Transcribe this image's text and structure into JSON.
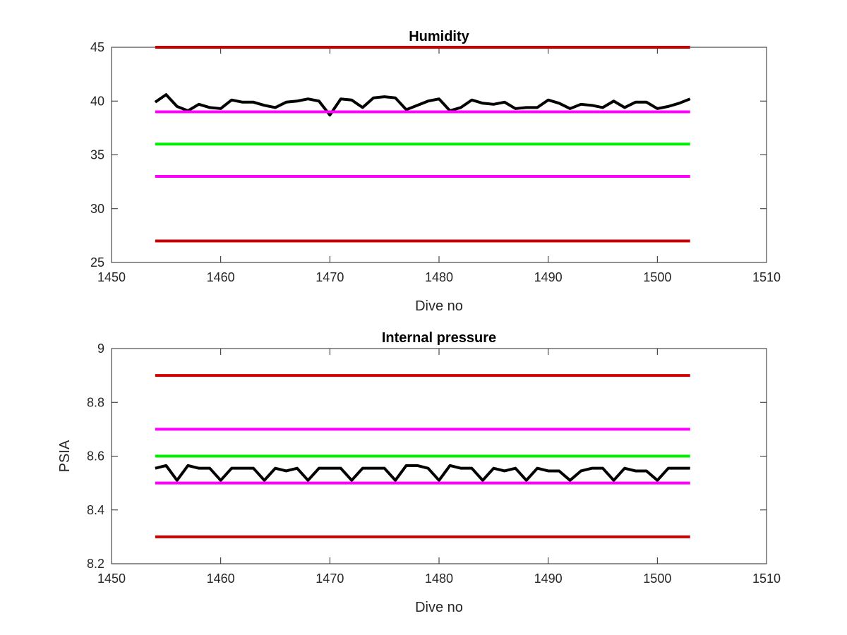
{
  "chart_data": [
    {
      "type": "line",
      "title": "Humidity",
      "xlabel": "Dive no",
      "ylabel": "",
      "xlim": [
        1450,
        1510
      ],
      "ylim": [
        25,
        45
      ],
      "xticks": [
        1450,
        1460,
        1470,
        1480,
        1490,
        1500,
        1510
      ],
      "yticks": [
        25,
        30,
        35,
        40,
        45
      ],
      "x": [
        1454,
        1455,
        1456,
        1457,
        1458,
        1459,
        1460,
        1461,
        1462,
        1463,
        1464,
        1465,
        1466,
        1467,
        1468,
        1469,
        1470,
        1471,
        1472,
        1473,
        1474,
        1475,
        1476,
        1477,
        1478,
        1479,
        1480,
        1481,
        1482,
        1483,
        1484,
        1485,
        1486,
        1487,
        1488,
        1489,
        1490,
        1491,
        1492,
        1493,
        1494,
        1495,
        1496,
        1497,
        1498,
        1499,
        1500,
        1501,
        1502,
        1503
      ],
      "series": [
        {
          "color": "#000000",
          "lineWidth": 4,
          "values": [
            39.9,
            40.6,
            39.5,
            39.1,
            39.7,
            39.4,
            39.3,
            40.1,
            39.9,
            39.9,
            39.6,
            39.4,
            39.9,
            40.0,
            40.2,
            40.0,
            38.7,
            40.2,
            40.1,
            39.4,
            40.3,
            40.4,
            40.3,
            39.2,
            39.6,
            40.0,
            40.2,
            39.1,
            39.4,
            40.1,
            39.8,
            39.7,
            39.9,
            39.3,
            39.4,
            39.4,
            40.1,
            39.8,
            39.3,
            39.7,
            39.6,
            39.4,
            40.0,
            39.4,
            39.9,
            39.9,
            39.3,
            39.5,
            39.8,
            40.2
          ]
        },
        {
          "color": "#cc0000",
          "lineWidth": 4,
          "x": [
            1454,
            1503
          ],
          "values": [
            45,
            45
          ]
        },
        {
          "color": "#ff00ff",
          "lineWidth": 4,
          "x": [
            1454,
            1503
          ],
          "values": [
            39,
            39
          ]
        },
        {
          "color": "#00ee00",
          "lineWidth": 4,
          "x": [
            1454,
            1503
          ],
          "values": [
            36,
            36
          ]
        },
        {
          "color": "#ff00ff",
          "lineWidth": 4,
          "x": [
            1454,
            1503
          ],
          "values": [
            33,
            33
          ]
        },
        {
          "color": "#cc0000",
          "lineWidth": 4,
          "x": [
            1454,
            1503
          ],
          "values": [
            27,
            27
          ]
        }
      ]
    },
    {
      "type": "line",
      "title": "Internal pressure",
      "xlabel": "Dive no",
      "ylabel": "PSIA",
      "xlim": [
        1450,
        1510
      ],
      "ylim": [
        8.2,
        9.0
      ],
      "xticks": [
        1450,
        1460,
        1470,
        1480,
        1490,
        1500,
        1510
      ],
      "yticks": [
        8.2,
        8.4,
        8.6,
        8.8,
        9.0
      ],
      "yticklabels": [
        "8.2",
        "8.4",
        "8.6",
        "8.8",
        "9"
      ],
      "x": [
        1454,
        1455,
        1456,
        1457,
        1458,
        1459,
        1460,
        1461,
        1462,
        1463,
        1464,
        1465,
        1466,
        1467,
        1468,
        1469,
        1470,
        1471,
        1472,
        1473,
        1474,
        1475,
        1476,
        1477,
        1478,
        1479,
        1480,
        1481,
        1482,
        1483,
        1484,
        1485,
        1486,
        1487,
        1488,
        1489,
        1490,
        1491,
        1492,
        1493,
        1494,
        1495,
        1496,
        1497,
        1498,
        1499,
        1500,
        1501,
        1502,
        1503
      ],
      "series": [
        {
          "color": "#000000",
          "lineWidth": 4,
          "values": [
            8.555,
            8.565,
            8.51,
            8.565,
            8.555,
            8.555,
            8.51,
            8.555,
            8.555,
            8.555,
            8.51,
            8.555,
            8.545,
            8.555,
            8.51,
            8.555,
            8.555,
            8.555,
            8.51,
            8.555,
            8.555,
            8.555,
            8.51,
            8.565,
            8.565,
            8.555,
            8.51,
            8.565,
            8.555,
            8.555,
            8.51,
            8.555,
            8.545,
            8.555,
            8.51,
            8.555,
            8.545,
            8.545,
            8.51,
            8.545,
            8.555,
            8.555,
            8.51,
            8.555,
            8.545,
            8.545,
            8.51,
            8.555,
            8.555,
            8.555
          ]
        },
        {
          "color": "#cc0000",
          "lineWidth": 4,
          "x": [
            1454,
            1503
          ],
          "values": [
            8.9,
            8.9
          ]
        },
        {
          "color": "#ff00ff",
          "lineWidth": 4,
          "x": [
            1454,
            1503
          ],
          "values": [
            8.7,
            8.7
          ]
        },
        {
          "color": "#00ee00",
          "lineWidth": 4,
          "x": [
            1454,
            1503
          ],
          "values": [
            8.6,
            8.6
          ]
        },
        {
          "color": "#ff00ff",
          "lineWidth": 4,
          "x": [
            1454,
            1503
          ],
          "values": [
            8.5,
            8.5
          ]
        },
        {
          "color": "#cc0000",
          "lineWidth": 4,
          "x": [
            1454,
            1503
          ],
          "values": [
            8.3,
            8.3
          ]
        }
      ]
    }
  ]
}
